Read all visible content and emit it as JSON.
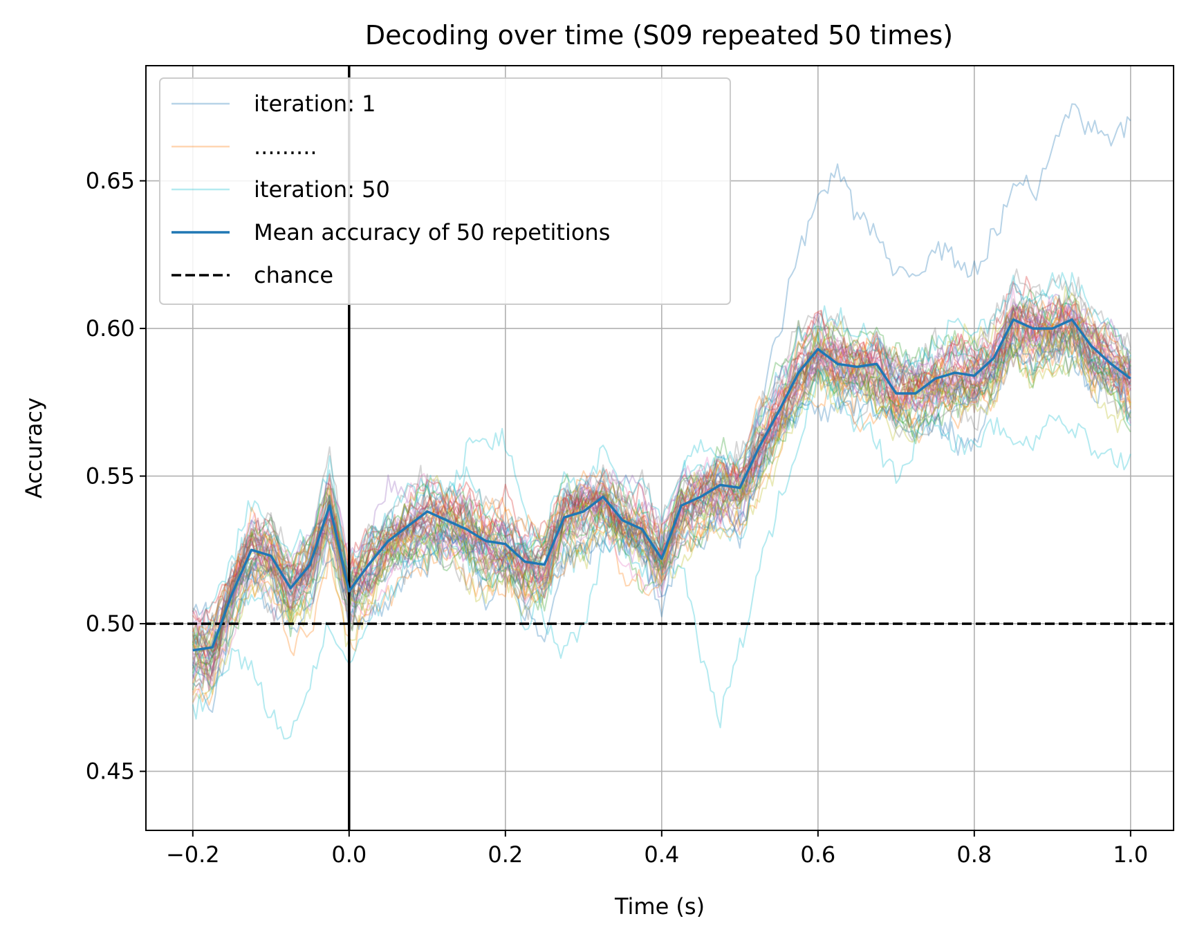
{
  "chart_data": {
    "type": "line",
    "title": "Decoding over time (S09 repeated 50 times)",
    "xlabel": "Time (s)",
    "ylabel": "Accuracy",
    "xlim": [
      -0.26,
      1.055
    ],
    "ylim": [
      0.43,
      0.689
    ],
    "xticks": [
      -0.2,
      0.0,
      0.2,
      0.4,
      0.6,
      0.8,
      1.0
    ],
    "xtick_labels": [
      "−0.2",
      "0.0",
      "0.2",
      "0.4",
      "0.6",
      "0.8",
      "1.0"
    ],
    "yticks": [
      0.45,
      0.5,
      0.55,
      0.6,
      0.65
    ],
    "ytick_labels": [
      "0.45",
      "0.50",
      "0.55",
      "0.60",
      "0.65"
    ],
    "grid": true,
    "legend_position": "top-left",
    "legend": [
      {
        "label": "iteration: 1",
        "color": "#1f77b4",
        "style": "faint"
      },
      {
        "label": ".........",
        "color": "#ff7f0e",
        "style": "faint"
      },
      {
        "label": "iteration: 50",
        "color": "#17becf",
        "style": "faint"
      },
      {
        "label": "Mean accuracy of 50 repetitions",
        "color": "#1f77b4",
        "style": "solid"
      },
      {
        "label": "chance",
        "color": "#000000",
        "style": "dashed"
      }
    ],
    "chance_level": 0.5,
    "stimulus_onset": 0.0,
    "iterations": 50,
    "iteration_colors": [
      "#1f77b4",
      "#ff7f0e",
      "#2ca02c",
      "#d62728",
      "#9467bd",
      "#8c564b",
      "#e377c2",
      "#7f7f7f",
      "#bcbd22",
      "#17becf"
    ],
    "x": [
      -0.2,
      -0.175,
      -0.15,
      -0.125,
      -0.1,
      -0.075,
      -0.05,
      -0.025,
      0.0,
      0.025,
      0.05,
      0.075,
      0.1,
      0.125,
      0.15,
      0.175,
      0.2,
      0.225,
      0.25,
      0.275,
      0.3,
      0.325,
      0.35,
      0.375,
      0.4,
      0.425,
      0.45,
      0.475,
      0.5,
      0.525,
      0.55,
      0.575,
      0.6,
      0.625,
      0.65,
      0.675,
      0.7,
      0.725,
      0.75,
      0.775,
      0.8,
      0.825,
      0.85,
      0.875,
      0.9,
      0.925,
      0.95,
      0.975,
      1.0
    ],
    "series": [
      {
        "name": "Mean accuracy of 50 repetitions",
        "values": [
          0.491,
          0.492,
          0.51,
          0.525,
          0.523,
          0.512,
          0.52,
          0.54,
          0.511,
          0.52,
          0.528,
          0.533,
          0.538,
          0.535,
          0.532,
          0.528,
          0.527,
          0.521,
          0.52,
          0.536,
          0.538,
          0.543,
          0.535,
          0.532,
          0.522,
          0.54,
          0.543,
          0.547,
          0.546,
          0.56,
          0.572,
          0.585,
          0.593,
          0.588,
          0.587,
          0.588,
          0.578,
          0.578,
          0.583,
          0.585,
          0.584,
          0.59,
          0.603,
          0.6,
          0.6,
          0.603,
          0.594,
          0.588,
          0.583
        ]
      },
      {
        "name": "iteration: 1",
        "values": [
          0.505,
          0.5,
          0.515,
          0.53,
          0.52,
          0.515,
          0.53,
          0.535,
          0.51,
          0.525,
          0.535,
          0.53,
          0.54,
          0.54,
          0.53,
          0.525,
          0.53,
          0.52,
          0.52,
          0.54,
          0.545,
          0.54,
          0.535,
          0.535,
          0.525,
          0.545,
          0.545,
          0.55,
          0.55,
          0.57,
          0.6,
          0.625,
          0.645,
          0.652,
          0.64,
          0.63,
          0.62,
          0.618,
          0.625,
          0.625,
          0.62,
          0.63,
          0.65,
          0.645,
          0.66,
          0.675,
          0.665,
          0.665,
          0.668
        ]
      },
      {
        "name": "iteration: 50",
        "values": [
          0.47,
          0.475,
          0.49,
          0.485,
          0.47,
          0.46,
          0.48,
          0.5,
          0.485,
          0.5,
          0.51,
          0.52,
          0.52,
          0.535,
          0.56,
          0.562,
          0.56,
          0.54,
          0.5,
          0.49,
          0.5,
          0.525,
          0.53,
          0.54,
          0.52,
          0.52,
          0.49,
          0.47,
          0.49,
          0.52,
          0.54,
          0.56,
          0.585,
          0.58,
          0.57,
          0.56,
          0.55,
          0.56,
          0.57,
          0.56,
          0.56,
          0.57,
          0.56,
          0.56,
          0.57,
          0.565,
          0.56,
          0.555,
          0.556
        ]
      }
    ]
  }
}
